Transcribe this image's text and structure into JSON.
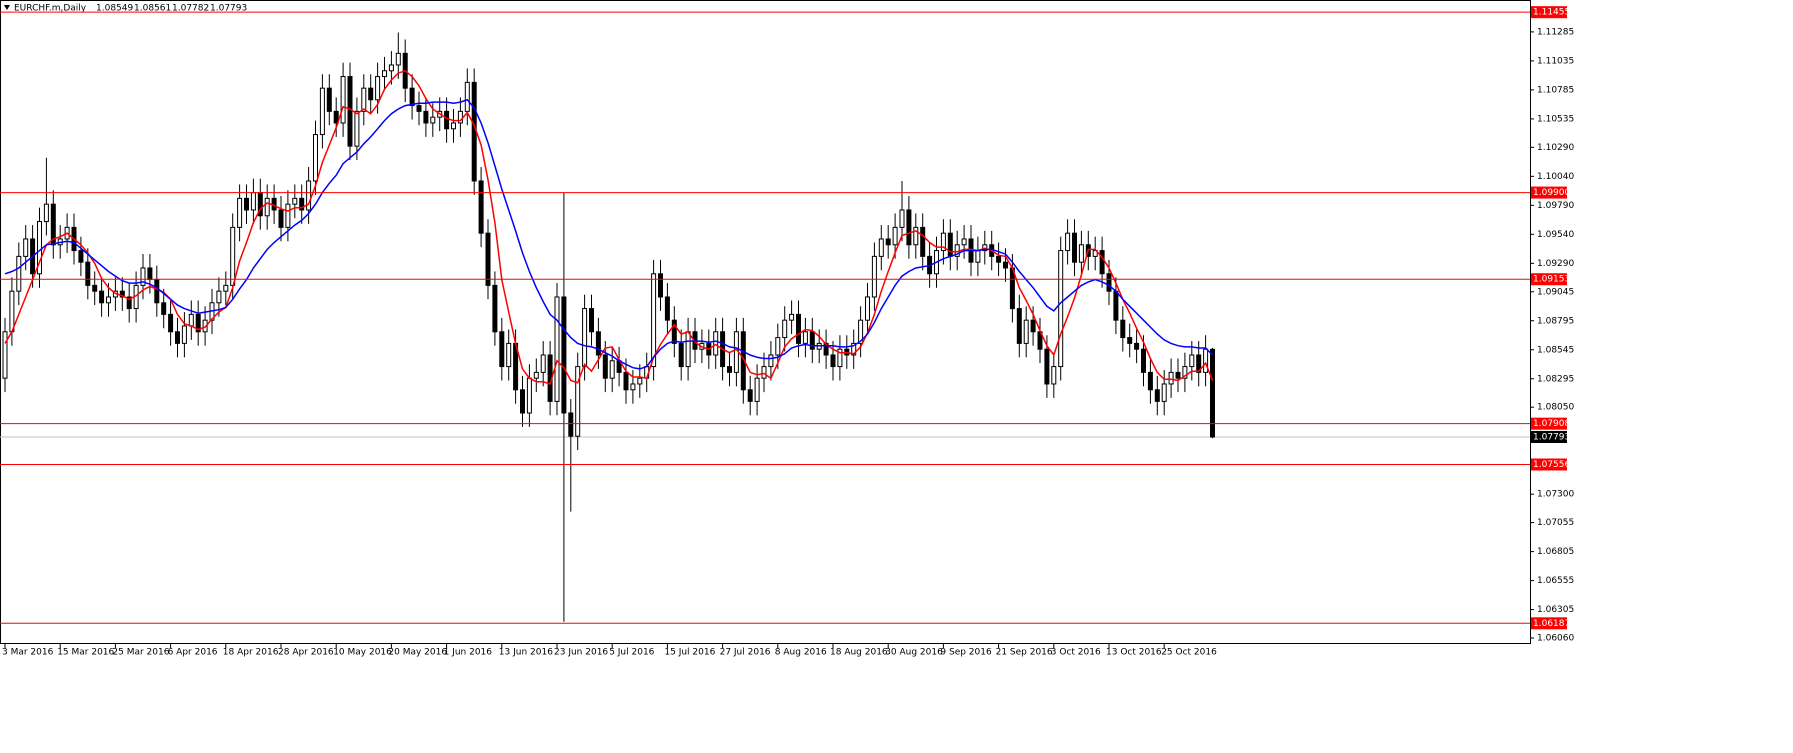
{
  "chart_data": {
    "type": "candlestick",
    "title": "EURCHF.m,Daily",
    "categories": [
      "3 Mar 2016",
      null,
      null,
      null,
      null,
      null,
      null,
      null,
      "15 Mar 2016",
      null,
      null,
      null,
      null,
      null,
      null,
      null,
      "25 Mar 2016",
      null,
      null,
      null,
      null,
      null,
      null,
      null,
      "6 Apr 2016",
      null,
      null,
      null,
      null,
      null,
      null,
      null,
      "18 Apr 2016",
      null,
      null,
      null,
      null,
      null,
      null,
      null,
      "28 Apr 2016",
      null,
      null,
      null,
      null,
      null,
      null,
      null,
      "10 May 2016",
      null,
      null,
      null,
      null,
      null,
      null,
      null,
      "20 May 2016",
      null,
      null,
      null,
      null,
      null,
      null,
      null,
      "1 Jun 2016",
      null,
      null,
      null,
      null,
      null,
      null,
      null,
      "13 Jun 2016",
      null,
      null,
      null,
      null,
      null,
      null,
      null,
      "23 Jun 2016",
      null,
      null,
      null,
      null,
      null,
      null,
      null,
      "5 Jul 2016",
      null,
      null,
      null,
      null,
      null,
      null,
      null,
      "15 Jul 2016",
      null,
      null,
      null,
      null,
      null,
      null,
      null,
      "27 Jul 2016",
      null,
      null,
      null,
      null,
      null,
      null,
      null,
      "8 Aug 2016",
      null,
      null,
      null,
      null,
      null,
      null,
      null,
      "18 Aug 2016",
      null,
      null,
      null,
      null,
      null,
      null,
      null,
      "30 Aug 2016",
      null,
      null,
      null,
      null,
      null,
      null,
      null,
      "9 Sep 2016",
      null,
      null,
      null,
      null,
      null,
      null,
      null,
      "21 Sep 2016",
      null,
      null,
      null,
      null,
      null,
      null,
      null,
      "3 Oct 2016",
      null,
      null,
      null,
      null,
      null,
      null,
      null,
      "13 Oct 2016",
      null,
      null,
      null,
      null,
      null,
      null,
      null,
      "25 Oct 2016",
      null,
      null,
      null,
      null,
      null,
      null,
      null
    ],
    "open": [
      1.083,
      1.087,
      1.0905,
      1.0935,
      1.095,
      1.092,
      1.0965,
      1.098,
      1.0945,
      1.095,
      1.096,
      1.094,
      1.093,
      1.091,
      1.0905,
      1.0895,
      1.09,
      1.0905,
      1.09,
      1.089,
      1.091,
      1.0925,
      1.0915,
      1.0895,
      1.0885,
      1.087,
      1.086,
      1.0875,
      1.0885,
      1.087,
      1.088,
      1.0895,
      1.0905,
      1.091,
      1.096,
      1.0985,
      1.0975,
      1.099,
      1.097,
      1.0985,
      1.0975,
      1.096,
      1.098,
      1.0985,
      1.0975,
      1.1,
      1.104,
      1.108,
      1.106,
      1.105,
      1.109,
      1.103,
      1.106,
      1.108,
      1.107,
      1.109,
      1.1095,
      1.11,
      1.111,
      1.108,
      1.1065,
      1.106,
      1.105,
      1.1055,
      1.106,
      1.1045,
      1.105,
      1.106,
      1.1085,
      1.1,
      1.0955,
      1.091,
      1.087,
      1.084,
      1.086,
      1.082,
      1.08,
      1.083,
      1.0835,
      1.085,
      1.081,
      1.09,
      1.08,
      1.078,
      1.084,
      1.089,
      1.087,
      1.085,
      1.083,
      1.0845,
      1.0835,
      1.082,
      1.0825,
      1.083,
      1.084,
      1.092,
      1.09,
      1.088,
      1.086,
      1.084,
      1.087,
      1.0855,
      1.086,
      1.085,
      1.087,
      1.084,
      1.0835,
      1.087,
      1.082,
      1.081,
      1.083,
      1.084,
      1.085,
      1.0865,
      1.088,
      1.0885,
      1.086,
      1.087,
      1.0855,
      1.086,
      1.085,
      1.084,
      1.0855,
      1.085,
      1.086,
      1.088,
      1.09,
      1.0935,
      1.095,
      1.0945,
      1.096,
      1.0975,
      1.0945,
      1.096,
      1.0935,
      1.092,
      1.094,
      1.0955,
      1.0935,
      1.0945,
      1.095,
      1.093,
      1.094,
      1.0945,
      1.0935,
      1.093,
      1.0925,
      1.089,
      1.086,
      1.088,
      1.087,
      1.0855,
      1.0825,
      1.084,
      1.094,
      1.0955,
      1.093,
      1.0945,
      1.0935,
      1.094,
      1.092,
      1.0905,
      1.088,
      1.0865,
      1.086,
      1.0855,
      1.0835,
      1.082,
      1.081,
      1.0825,
      1.0835,
      1.083,
      1.084,
      1.085,
      1.0835,
      1.08549
    ],
    "high": [
      1.0882,
      1.0917,
      1.0947,
      1.0962,
      1.0962,
      1.0977,
      1.102,
      1.0992,
      1.0962,
      1.0972,
      1.0972,
      1.0952,
      1.0942,
      1.0922,
      1.0917,
      1.0912,
      1.0917,
      1.0917,
      1.0912,
      1.0922,
      1.0937,
      1.0937,
      1.0927,
      1.0907,
      1.0897,
      1.0882,
      1.0887,
      1.0897,
      1.0897,
      1.0892,
      1.0907,
      1.0917,
      1.0922,
      1.0972,
      1.0997,
      1.0997,
      1.1002,
      1.1002,
      1.0997,
      1.0997,
      1.0987,
      1.0992,
      1.0997,
      1.0997,
      1.1012,
      1.1052,
      1.1092,
      1.1092,
      1.1072,
      1.1102,
      1.1102,
      1.1072,
      1.1092,
      1.1092,
      1.1102,
      1.1107,
      1.1112,
      1.1128,
      1.1122,
      1.1092,
      1.1077,
      1.1072,
      1.1067,
      1.1072,
      1.1072,
      1.1062,
      1.1072,
      1.1097,
      1.1097,
      1.1012,
      1.0967,
      1.0922,
      1.0882,
      1.0872,
      1.0872,
      1.0832,
      1.0842,
      1.0847,
      1.0862,
      1.0862,
      1.0912,
      1.099,
      1.0812,
      1.0852,
      1.0902,
      1.0902,
      1.0882,
      1.0862,
      1.0857,
      1.0857,
      1.0847,
      1.0837,
      1.0842,
      1.0852,
      1.0932,
      1.0932,
      1.0912,
      1.0892,
      1.0872,
      1.0882,
      1.0882,
      1.0872,
      1.0872,
      1.0882,
      1.0882,
      1.0852,
      1.0882,
      1.0882,
      1.0832,
      1.0842,
      1.0852,
      1.0862,
      1.0877,
      1.0892,
      1.0897,
      1.0897,
      1.0882,
      1.0882,
      1.0872,
      1.0872,
      1.0862,
      1.0867,
      1.0867,
      1.0872,
      1.0892,
      1.0912,
      1.0947,
      1.0962,
      1.0962,
      1.0972,
      1.1,
      1.0987,
      1.0972,
      1.0972,
      1.0947,
      1.0952,
      1.0967,
      1.0967,
      1.0957,
      1.0962,
      1.0962,
      1.0952,
      1.0957,
      1.0957,
      1.0947,
      1.0942,
      1.0937,
      1.0902,
      1.0892,
      1.0892,
      1.0882,
      1.0867,
      1.0852,
      1.0952,
      1.0967,
      1.0967,
      1.0957,
      1.0957,
      1.0952,
      1.0952,
      1.0932,
      1.0917,
      1.0892,
      1.0877,
      1.0872,
      1.0867,
      1.0847,
      1.0832,
      1.0837,
      1.0847,
      1.0847,
      1.0852,
      1.0862,
      1.0862,
      1.0867,
      1.08561
    ],
    "low": [
      1.0818,
      1.0858,
      1.0893,
      1.0923,
      1.0908,
      1.0908,
      1.0953,
      1.0933,
      1.0933,
      1.0938,
      1.0928,
      1.0918,
      1.0898,
      1.0893,
      1.0883,
      1.0883,
      1.0888,
      1.0888,
      1.0878,
      1.0878,
      1.0898,
      1.0903,
      1.0883,
      1.0873,
      1.0858,
      1.0848,
      1.0848,
      1.0863,
      1.0858,
      1.0858,
      1.0868,
      1.0883,
      1.0893,
      1.0898,
      1.0948,
      1.0963,
      1.0963,
      1.0958,
      1.0958,
      1.0963,
      1.0948,
      1.0948,
      1.0968,
      1.0963,
      1.0963,
      1.0988,
      1.1028,
      1.1048,
      1.1038,
      1.1038,
      1.1018,
      1.1018,
      1.1048,
      1.1058,
      1.1058,
      1.1078,
      1.1083,
      1.1088,
      1.1068,
      1.1053,
      1.1048,
      1.1038,
      1.1038,
      1.1043,
      1.1033,
      1.1033,
      1.1038,
      1.1048,
      1.0988,
      1.0943,
      1.0898,
      1.0858,
      1.0828,
      1.0828,
      1.0808,
      1.0788,
      1.0788,
      1.0818,
      1.0823,
      1.0798,
      1.0798,
      1.062,
      1.0715,
      1.0768,
      1.0828,
      1.0858,
      1.0838,
      1.0818,
      1.0818,
      1.0823,
      1.0808,
      1.0808,
      1.0813,
      1.0818,
      1.0828,
      1.0888,
      1.0868,
      1.0848,
      1.0828,
      1.0828,
      1.0843,
      1.0843,
      1.0838,
      1.0838,
      1.0828,
      1.0823,
      1.0823,
      1.0808,
      1.0798,
      1.0798,
      1.0818,
      1.0828,
      1.0838,
      1.0853,
      1.0868,
      1.0848,
      1.0848,
      1.0843,
      1.0843,
      1.0838,
      1.0828,
      1.0828,
      1.0838,
      1.0838,
      1.0848,
      1.0868,
      1.0888,
      1.0923,
      1.0933,
      1.0933,
      1.0948,
      1.0933,
      1.0933,
      1.0923,
      1.0908,
      1.0908,
      1.0928,
      1.0923,
      1.0923,
      1.0933,
      1.0918,
      1.0918,
      1.0928,
      1.0923,
      1.0918,
      1.0913,
      1.0878,
      1.0848,
      1.0848,
      1.0858,
      1.0843,
      1.0813,
      1.0813,
      1.0828,
      1.0928,
      1.0918,
      1.0918,
      1.0923,
      1.0923,
      1.0908,
      1.0893,
      1.0868,
      1.0853,
      1.0848,
      1.0843,
      1.0823,
      1.0808,
      1.0798,
      1.0798,
      1.0813,
      1.0818,
      1.0818,
      1.0828,
      1.0823,
      1.0823,
      1.07782
    ],
    "close": [
      1.087,
      1.0905,
      1.0935,
      1.095,
      1.092,
      1.0965,
      1.098,
      1.0945,
      1.095,
      1.096,
      1.094,
      1.093,
      1.091,
      1.0905,
      1.0895,
      1.09,
      1.0905,
      1.09,
      1.089,
      1.091,
      1.0925,
      1.0915,
      1.0895,
      1.0885,
      1.087,
      1.086,
      1.0875,
      1.0885,
      1.087,
      1.088,
      1.0895,
      1.0905,
      1.091,
      1.096,
      1.0985,
      1.0975,
      1.099,
      1.097,
      1.0985,
      1.0975,
      1.096,
      1.098,
      1.0985,
      1.0975,
      1.1,
      1.104,
      1.108,
      1.106,
      1.105,
      1.109,
      1.103,
      1.106,
      1.108,
      1.107,
      1.109,
      1.1095,
      1.11,
      1.111,
      1.108,
      1.1065,
      1.106,
      1.105,
      1.1055,
      1.106,
      1.1045,
      1.105,
      1.106,
      1.1085,
      1.1,
      1.0955,
      1.091,
      1.087,
      1.084,
      1.086,
      1.082,
      1.08,
      1.083,
      1.0835,
      1.085,
      1.081,
      1.09,
      1.08,
      1.078,
      1.084,
      1.089,
      1.087,
      1.085,
      1.083,
      1.0845,
      1.0835,
      1.082,
      1.0825,
      1.083,
      1.084,
      1.092,
      1.09,
      1.088,
      1.086,
      1.084,
      1.087,
      1.0855,
      1.086,
      1.085,
      1.087,
      1.084,
      1.0835,
      1.087,
      1.082,
      1.081,
      1.083,
      1.084,
      1.085,
      1.0865,
      1.088,
      1.0885,
      1.086,
      1.087,
      1.0855,
      1.086,
      1.085,
      1.084,
      1.0855,
      1.085,
      1.086,
      1.088,
      1.09,
      1.0935,
      1.095,
      1.0945,
      1.096,
      1.0975,
      1.0945,
      1.096,
      1.0935,
      1.092,
      1.094,
      1.0955,
      1.0935,
      1.0945,
      1.095,
      1.093,
      1.094,
      1.0945,
      1.0935,
      1.093,
      1.0925,
      1.089,
      1.086,
      1.088,
      1.087,
      1.0855,
      1.0825,
      1.084,
      1.094,
      1.0955,
      1.093,
      1.0945,
      1.0935,
      1.094,
      1.092,
      1.0905,
      1.088,
      1.0865,
      1.086,
      1.0855,
      1.0835,
      1.082,
      1.081,
      1.0825,
      1.0835,
      1.083,
      1.084,
      1.085,
      1.0835,
      1.0855,
      1.07793
    ],
    "lines": [
      {
        "color": "#ff0000",
        "values": [
          1.086,
          1.087,
          1.0885,
          1.09,
          1.0915,
          1.093,
          1.0945,
          1.095,
          1.0952,
          1.0955,
          1.095,
          1.0945,
          1.0938,
          1.0929,
          1.0916,
          1.0908,
          1.0903,
          1.0901,
          1.0898,
          1.0901,
          1.0906,
          1.0909,
          1.0907,
          1.0904,
          1.0898,
          1.0885,
          1.0877,
          1.0875,
          1.0872,
          1.0874,
          1.0881,
          1.0887,
          1.0891,
          1.0908,
          1.0931,
          1.0947,
          1.0964,
          1.0976,
          1.0981,
          1.0979,
          1.0976,
          1.0974,
          1.0977,
          1.0977,
          1.098,
          1.0996,
          1.1016,
          1.1031,
          1.1046,
          1.1064,
          1.1062,
          1.1058,
          1.1062,
          1.1058,
          1.1066,
          1.1079,
          1.1087,
          1.1093,
          1.1095,
          1.109,
          1.1082,
          1.1071,
          1.1062,
          1.1058,
          1.1054,
          1.1052,
          1.1052,
          1.1059,
          1.1048,
          1.1031,
          1.1001,
          1.0964,
          1.0915,
          1.0887,
          1.086,
          1.0838,
          1.083,
          1.0827,
          1.0827,
          1.0825,
          1.0845,
          1.0839,
          1.0828,
          1.0826,
          1.0842,
          1.0836,
          1.0846,
          1.0856,
          1.0857,
          1.0846,
          1.0836,
          1.0831,
          1.0831,
          1.083,
          1.0848,
          1.0859,
          1.0868,
          1.0876,
          1.0868,
          1.087,
          1.0861,
          1.0857,
          1.0855,
          1.0859,
          1.0855,
          1.0852,
          1.0855,
          1.0847,
          1.0835,
          1.0833,
          1.0834,
          1.083,
          1.0843,
          1.0857,
          1.0864,
          1.0868,
          1.0872,
          1.0871,
          1.0866,
          1.0859,
          1.0855,
          1.0852,
          1.0852,
          1.0851,
          1.0857,
          1.0869,
          1.0885,
          1.0905,
          1.0922,
          1.0938,
          1.0953,
          1.0955,
          1.0957,
          1.0953,
          1.0947,
          1.0943,
          1.0943,
          1.0939,
          1.0939,
          1.0941,
          1.0941,
          1.094,
          1.0942,
          1.094,
          1.0936,
          1.0935,
          1.0925,
          1.0908,
          1.0897,
          1.0885,
          1.0871,
          1.0858,
          1.085,
          1.0868,
          1.0883,
          1.0899,
          1.0919,
          1.0941,
          1.0941,
          1.0934,
          1.0925,
          1.0912,
          1.0898,
          1.0886,
          1.0873,
          1.0861,
          1.0847,
          1.0835,
          1.0829,
          1.0829,
          1.0828,
          1.0832,
          1.0836,
          1.0836,
          1.0843,
          1.0828
        ]
      },
      {
        "color": "#0000ff",
        "values": [
          1.092,
          1.0922,
          1.0925,
          1.093,
          1.0935,
          1.094,
          1.0945,
          1.0946,
          1.0947,
          1.0948,
          1.0947,
          1.0942,
          1.0937,
          1.0932,
          1.0927,
          1.0922,
          1.0918,
          1.0914,
          1.0912,
          1.0912,
          1.0913,
          1.0911,
          1.0908,
          1.0903,
          1.0898,
          1.0893,
          1.089,
          1.0888,
          1.0886,
          1.0887,
          1.0888,
          1.0889,
          1.0891,
          1.0898,
          1.0907,
          1.0915,
          1.0925,
          1.0933,
          1.0941,
          1.0947,
          1.0952,
          1.0957,
          1.0962,
          1.0966,
          1.0972,
          1.098,
          1.099,
          1.0998,
          1.1005,
          1.1015,
          1.102,
          1.1025,
          1.1032,
          1.1038,
          1.1045,
          1.1052,
          1.1058,
          1.1062,
          1.1065,
          1.1066,
          1.1067,
          1.1067,
          1.1068,
          1.1068,
          1.1068,
          1.1067,
          1.1068,
          1.107,
          1.1063,
          1.105,
          1.1033,
          1.1013,
          1.0993,
          1.0975,
          1.0957,
          1.0938,
          1.0922,
          1.0908,
          1.0896,
          1.0885,
          1.088,
          1.0872,
          1.0865,
          1.086,
          1.0858,
          1.0857,
          1.0855,
          1.0852,
          1.0849,
          1.0845,
          1.0842,
          1.0839,
          1.0838,
          1.084,
          1.0848,
          1.0855,
          1.086,
          1.0862,
          1.0861,
          1.0862,
          1.0862,
          1.0862,
          1.0861,
          1.0862,
          1.086,
          1.0857,
          1.0856,
          1.0853,
          1.085,
          1.0848,
          1.0847,
          1.0847,
          1.0848,
          1.0851,
          1.0856,
          1.0858,
          1.0859,
          1.0858,
          1.0858,
          1.0858,
          1.0858,
          1.0857,
          1.0857,
          1.0858,
          1.0862,
          1.0868,
          1.0878,
          1.089,
          1.09,
          1.091,
          1.0918,
          1.0922,
          1.0925,
          1.0926,
          1.0927,
          1.093,
          1.0933,
          1.0935,
          1.0937,
          1.094,
          1.094,
          1.094,
          1.0941,
          1.0941,
          1.0939,
          1.0937,
          1.093,
          1.0922,
          1.0915,
          1.0908,
          1.09,
          1.0892,
          1.0888,
          1.0895,
          1.09,
          1.0905,
          1.091,
          1.0913,
          1.0915,
          1.0913,
          1.091,
          1.0905,
          1.0898,
          1.0892,
          1.0886,
          1.088,
          1.0874,
          1.0868,
          1.0863,
          1.086,
          1.0858,
          1.0857,
          1.0857,
          1.0856,
          1.0856,
          1.085
        ]
      }
    ],
    "levels": [
      1.11455,
      {
        "value": 1.099,
        "label": "1.09900"
      },
      1.09153,
      1.07908,
      1.07556,
      1.06187
    ],
    "level_color": "#ff0000",
    "ylim": [
      1.06,
      1.1156
    ],
    "yticks": [
      1.11285,
      1.11035,
      1.10785,
      1.10535,
      {
        "value": 1.1029,
        "label": "1.10290"
      },
      {
        "value": 1.1004,
        "label": "1.10040"
      },
      {
        "value": 1.0979,
        "label": "1.09790"
      },
      {
        "value": 1.0954,
        "label": "1.09540"
      },
      {
        "value": 1.0929,
        "label": "1.09290"
      },
      1.09045,
      1.08795,
      1.08545,
      1.08295,
      {
        "value": 1.0805,
        "label": "1.08050"
      },
      {
        "value": 1.073,
        "label": "1.07300"
      },
      1.07055,
      1.06805,
      1.06555,
      1.06305,
      {
        "value": 1.0606,
        "label": "1.06060"
      }
    ],
    "up_color": "#ffffff",
    "down_color": "#000000"
  }
}
